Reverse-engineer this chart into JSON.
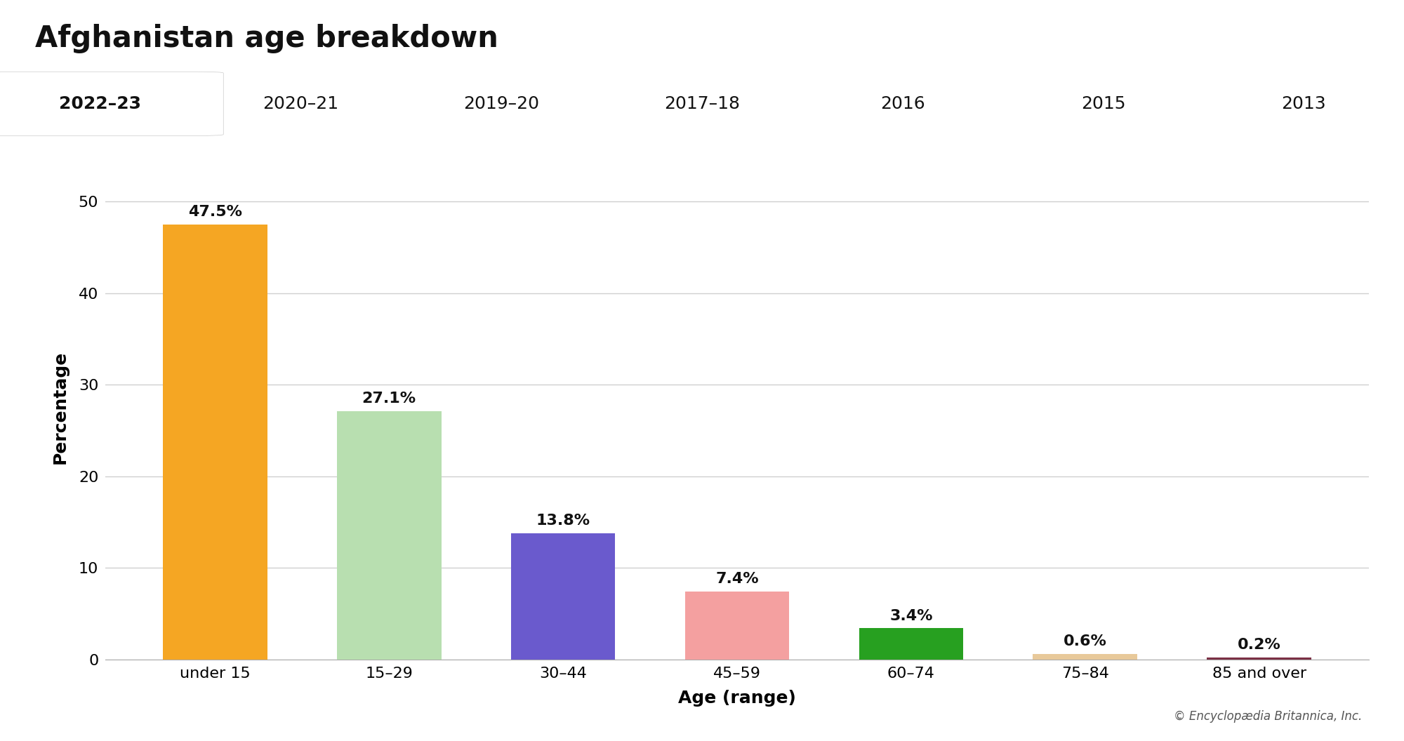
{
  "title": "Afghanistan age breakdown",
  "tab_years": [
    "2022–23",
    "2020–21",
    "2019–20",
    "2017–18",
    "2016",
    "2015",
    "2013"
  ],
  "active_tab_idx": 0,
  "categories": [
    "under 15",
    "15–29",
    "30–44",
    "45–59",
    "60–74",
    "75–84",
    "85 and over"
  ],
  "values": [
    47.5,
    27.1,
    13.8,
    7.4,
    3.4,
    0.6,
    0.2
  ],
  "bar_colors": [
    "#F5A623",
    "#B8DFB0",
    "#6A5ACD",
    "#F4A0A0",
    "#27A020",
    "#E8C99A",
    "#7B3045"
  ],
  "xlabel": "Age (range)",
  "ylabel": "Percentage",
  "ylim": [
    0,
    55
  ],
  "yticks": [
    0,
    10,
    20,
    30,
    40,
    50
  ],
  "title_fontsize": 30,
  "axis_label_fontsize": 18,
  "tick_fontsize": 16,
  "value_label_fontsize": 16,
  "tab_fontsize": 18,
  "bg_color": "#ffffff",
  "tab_bar_bg": "#e0e0e0",
  "active_tab_bg": "#ffffff",
  "grid_color": "#d0d0d0",
  "copyright_text": "© Encyclopædia Britannica, Inc."
}
